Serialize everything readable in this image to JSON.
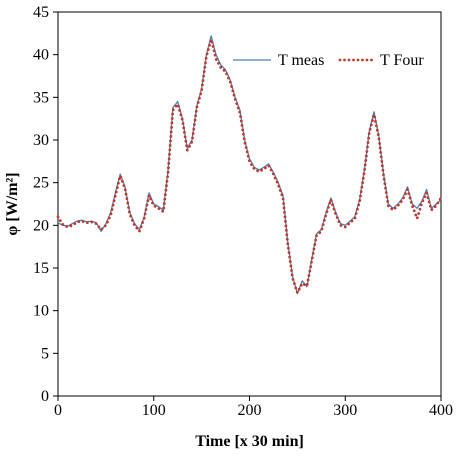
{
  "chart_data": {
    "type": "line",
    "title": "",
    "xlabel": "Time [x 30 min]",
    "ylabel": "φ [W/m²]",
    "xlim": [
      0,
      400
    ],
    "ylim": [
      0,
      45
    ],
    "xticks": [
      0,
      100,
      200,
      300,
      400
    ],
    "yticks": [
      0,
      5,
      10,
      15,
      20,
      25,
      30,
      35,
      40,
      45
    ],
    "grid": false,
    "legend_position": "top-right",
    "series": [
      {
        "name": "T meas",
        "style": "solid",
        "color": "#4a7ebb",
        "x": [
          0,
          5,
          10,
          15,
          20,
          25,
          30,
          35,
          40,
          45,
          50,
          55,
          60,
          65,
          70,
          75,
          80,
          85,
          90,
          95,
          100,
          105,
          110,
          115,
          120,
          125,
          130,
          135,
          140,
          145,
          150,
          155,
          160,
          165,
          170,
          175,
          180,
          185,
          190,
          195,
          200,
          205,
          210,
          215,
          220,
          225,
          230,
          235,
          240,
          245,
          250,
          255,
          260,
          265,
          270,
          275,
          280,
          285,
          290,
          295,
          300,
          305,
          310,
          315,
          320,
          325,
          330,
          335,
          340,
          345,
          350,
          355,
          360,
          365,
          370,
          375,
          380,
          385,
          390,
          395,
          400
        ],
        "y": [
          20.3,
          20.0,
          19.9,
          20.2,
          20.5,
          20.6,
          20.4,
          20.5,
          20.3,
          19.3,
          20.2,
          21.5,
          23.8,
          26.0,
          24.5,
          21.5,
          20.2,
          19.5,
          21.0,
          23.8,
          22.5,
          22.2,
          21.8,
          26.5,
          33.8,
          34.5,
          32.5,
          29.0,
          30.0,
          34.0,
          36.0,
          40.0,
          42.2,
          40.0,
          38.8,
          38.2,
          37.0,
          35.0,
          33.5,
          30.0,
          27.8,
          26.8,
          26.5,
          26.8,
          27.2,
          26.2,
          25.0,
          23.5,
          18.0,
          14.0,
          12.0,
          13.5,
          12.8,
          16.0,
          19.0,
          19.5,
          21.5,
          23.2,
          21.5,
          20.2,
          20.0,
          20.5,
          21.0,
          23.0,
          26.5,
          31.0,
          33.3,
          30.5,
          26.0,
          22.5,
          22.0,
          22.5,
          23.2,
          24.5,
          22.5,
          22.0,
          22.8,
          24.2,
          22.0,
          22.5,
          23.0
        ]
      },
      {
        "name": "T Four",
        "style": "dotted",
        "color": "#c0392b",
        "x": [
          0,
          5,
          10,
          15,
          20,
          25,
          30,
          35,
          40,
          45,
          50,
          55,
          60,
          65,
          70,
          75,
          80,
          85,
          90,
          95,
          100,
          105,
          110,
          115,
          120,
          125,
          130,
          135,
          140,
          145,
          150,
          155,
          160,
          165,
          170,
          175,
          180,
          185,
          190,
          195,
          200,
          205,
          210,
          215,
          220,
          225,
          230,
          235,
          240,
          245,
          250,
          255,
          260,
          265,
          270,
          275,
          280,
          285,
          290,
          295,
          300,
          305,
          310,
          315,
          320,
          325,
          330,
          335,
          340,
          345,
          350,
          355,
          360,
          365,
          370,
          375,
          380,
          385,
          390,
          395,
          400
        ],
        "y": [
          21.0,
          20.1,
          19.8,
          20.0,
          20.4,
          20.5,
          20.3,
          20.4,
          20.2,
          19.5,
          20.0,
          21.2,
          23.5,
          25.8,
          24.3,
          21.3,
          20.0,
          19.3,
          20.8,
          23.5,
          22.3,
          22.0,
          21.6,
          26.2,
          33.5,
          34.2,
          32.3,
          28.8,
          29.8,
          33.8,
          35.8,
          39.8,
          41.8,
          39.5,
          38.5,
          38.0,
          36.8,
          34.8,
          33.2,
          29.8,
          27.5,
          26.6,
          26.3,
          26.6,
          27.0,
          26.0,
          24.8,
          23.2,
          17.8,
          13.8,
          12.1,
          13.2,
          12.9,
          15.8,
          18.8,
          19.3,
          21.3,
          23.0,
          21.3,
          20.0,
          19.8,
          20.3,
          20.8,
          22.8,
          26.3,
          30.8,
          33.0,
          30.3,
          25.8,
          22.3,
          21.8,
          22.3,
          23.0,
          24.2,
          22.3,
          20.8,
          22.6,
          23.8,
          21.8,
          22.3,
          23.2
        ]
      }
    ]
  }
}
